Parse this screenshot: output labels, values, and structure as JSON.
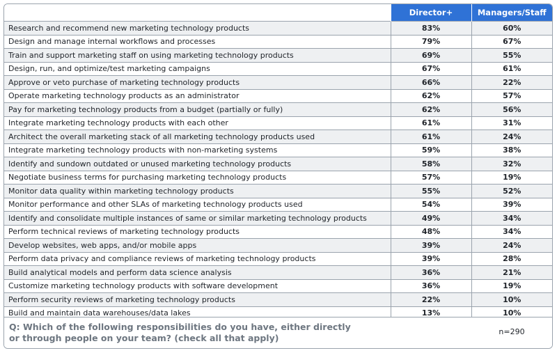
{
  "chart_data": {
    "type": "table",
    "columns": [
      "",
      "Director+",
      "Managers/Staff"
    ],
    "rows": [
      {
        "label": "Research and recommend new marketing technology products",
        "director": "83%",
        "managers": "60%"
      },
      {
        "label": "Design and manage internal workflows and processes",
        "director": "79%",
        "managers": "67%"
      },
      {
        "label": "Train and support marketing staff on using marketing technology products",
        "director": "69%",
        "managers": "55%"
      },
      {
        "label": "Design, run, and optimize/test marketing campaigns",
        "director": "67%",
        "managers": "61%"
      },
      {
        "label": "Approve or veto purchase of marketing technology products",
        "director": "66%",
        "managers": "22%"
      },
      {
        "label": "Operate marketing technology products as an administrator",
        "director": "62%",
        "managers": "57%"
      },
      {
        "label": "Pay for marketing technology products from a budget (partially or fully)",
        "director": "62%",
        "managers": "56%"
      },
      {
        "label": "Integrate marketing technology products with each other",
        "director": "61%",
        "managers": "31%"
      },
      {
        "label": "Architect the overall marketing stack of all marketing technology products used",
        "director": "61%",
        "managers": "24%"
      },
      {
        "label": "Integrate marketing technology products with non-marketing systems",
        "director": "59%",
        "managers": "38%"
      },
      {
        "label": "Identify and sundown outdated or unused marketing technology products",
        "director": "58%",
        "managers": "32%"
      },
      {
        "label": "Negotiate business terms for purchasing marketing technology products",
        "director": "57%",
        "managers": "19%"
      },
      {
        "label": "Monitor data quality within marketing technology products",
        "director": "55%",
        "managers": "52%"
      },
      {
        "label": "Monitor performance and other SLAs of marketing technology products used",
        "director": "54%",
        "managers": "39%"
      },
      {
        "label": "Identify and consolidate multiple instances of same or similar marketing technology products",
        "director": "49%",
        "managers": "34%"
      },
      {
        "label": "Perform technical reviews of marketing technology products",
        "director": "48%",
        "managers": "34%"
      },
      {
        "label": "Develop websites, web apps, and/or mobile apps",
        "director": "39%",
        "managers": "24%"
      },
      {
        "label": "Perform data privacy and compliance reviews of marketing technology products",
        "director": "39%",
        "managers": "28%"
      },
      {
        "label": "Build analytical models and perform data science analysis",
        "director": "36%",
        "managers": "21%"
      },
      {
        "label": "Customize marketing technology products with software development",
        "director": "36%",
        "managers": "19%"
      },
      {
        "label": "Perform security reviews of marketing technology products",
        "director": "22%",
        "managers": "10%"
      },
      {
        "label": "Build and maintain data warehouses/data lakes",
        "director": "13%",
        "managers": "10%"
      }
    ],
    "question_line1": "Q: Which of the following responsibilities do you have, either directly",
    "question_line2": "or through people on your team? (check all that apply)",
    "n": "n=290",
    "colors": {
      "header": "#2f72d6",
      "stripe": "#eef0f2",
      "question": "#6d7680"
    }
  }
}
